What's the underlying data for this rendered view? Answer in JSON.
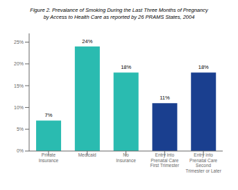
{
  "chart_data": {
    "type": "bar",
    "title": "Figure 2. Prevalance of Smoking During the Last Three Months of Pregnancy\nby Access to Health Care as reported by 26 PRAMS States, 2004",
    "categories": [
      "Private\nInsurance",
      "Medicaid",
      "No\nInsurance",
      "Entry into\nPrenatal Care\nFirst Trimester",
      "Entry into\nPrenatal Care\nSecond\nTrimester or Later"
    ],
    "values": [
      7,
      24,
      18,
      11,
      18
    ],
    "value_labels": [
      "7%",
      "24%",
      "18%",
      "11%",
      "18%"
    ],
    "data_labels": true,
    "colors": [
      "#2abbb0",
      "#2abbb0",
      "#2abbb0",
      "#1a3f8f",
      "#1a3f8f"
    ],
    "ylim": [
      0,
      27
    ],
    "yticks": [
      {
        "value": 0,
        "label": "0%"
      },
      {
        "value": 5,
        "label": "5%"
      },
      {
        "value": 10,
        "label": "10%"
      },
      {
        "value": 15,
        "label": "15%"
      },
      {
        "value": 20,
        "label": "20%"
      },
      {
        "value": 25,
        "label": "25%"
      }
    ]
  }
}
